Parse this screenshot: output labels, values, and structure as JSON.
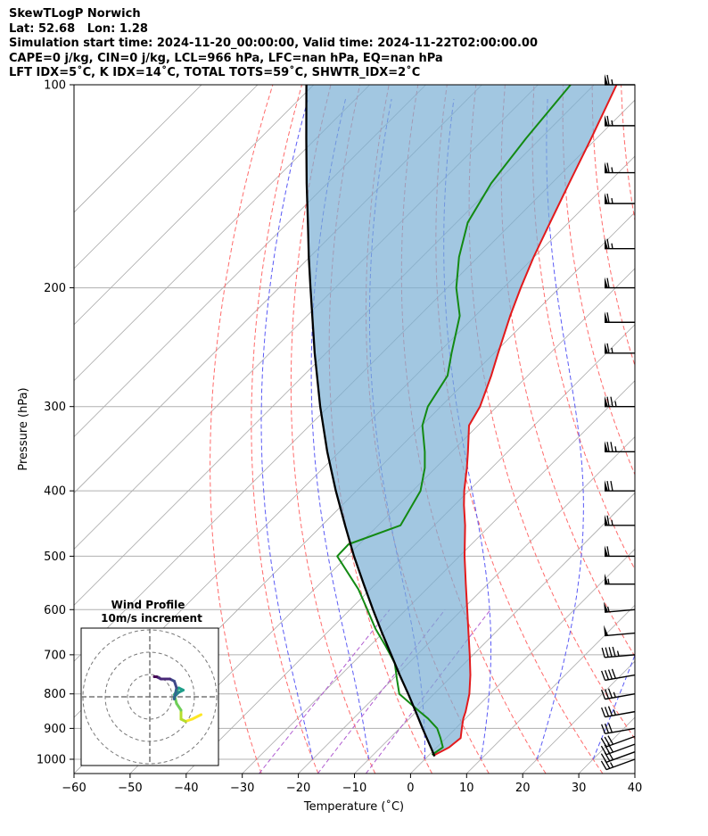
{
  "header": {
    "line1": "SkewTLogP Norwich",
    "line2": "Lat: 52.68   Lon: 1.28",
    "line3": "Simulation start time: 2024-11-20_00:00:00, Valid time: 2024-11-22T02:00:00.00",
    "line4": "CAPE=0 j/kg, CIN=0 j/kg, LCL=966 hPa, LFC=nan hPa, EQ=nan hPa",
    "line5": "LFT IDX=5˚C, K IDX=14˚C, TOTAL TOTS=59˚C, SHWTR_IDX=2˚C"
  },
  "chart_data": {
    "type": "line",
    "subtype": "skew-t log-p",
    "xlabel": "Temperature (˚C)",
    "ylabel": "Pressure (hPa)",
    "xlim": [
      -60,
      40
    ],
    "ylim": [
      1050,
      100
    ],
    "yscale": "log",
    "xticks": [
      -60,
      -50,
      -40,
      -30,
      -20,
      -10,
      0,
      10,
      20,
      30,
      40
    ],
    "yticks": [
      100,
      200,
      300,
      400,
      500,
      600,
      700,
      800,
      900,
      1000
    ],
    "grid": true,
    "colors": {
      "temperature": "#e31a1c",
      "dewpoint": "#138a13",
      "parcel": "#000000",
      "shading": "#7bafd4",
      "isotherm": "#aaaaaa",
      "dry_adiabat": "#ff6b6b",
      "moist_adiabat": "#5a5af5",
      "mixing_ratio": "#b05cd0"
    },
    "series": [
      {
        "key": "temperature",
        "pressure": [
          985,
          960,
          930,
          900,
          870,
          850,
          800,
          750,
          700,
          650,
          600,
          550,
          500,
          450,
          420,
          400,
          370,
          350,
          320,
          300,
          270,
          250,
          220,
          200,
          180,
          160,
          140,
          120,
          100
        ],
        "values": [
          1.0,
          2.2,
          2.6,
          1.1,
          -0.4,
          -1.2,
          -3.7,
          -6.9,
          -10.6,
          -14.7,
          -19.1,
          -23.9,
          -29.1,
          -34.5,
          -38.3,
          -40.8,
          -44.4,
          -47.1,
          -51.6,
          -53.0,
          -56.5,
          -59.3,
          -63.8,
          -66.9,
          -70.1,
          -73.3,
          -76.9,
          -81.0,
          -86.0
        ]
      },
      {
        "key": "dewpoint",
        "pressure": [
          985,
          960,
          930,
          900,
          870,
          850,
          800,
          760,
          720,
          680,
          640,
          600,
          560,
          500,
          480,
          450,
          400,
          370,
          350,
          320,
          300,
          270,
          250,
          220,
          200,
          180,
          160,
          140,
          120,
          100
        ],
        "values": [
          0.5,
          1.1,
          -1.0,
          -3.3,
          -6.7,
          -9.4,
          -16.2,
          -19.3,
          -22.5,
          -27.1,
          -32.1,
          -36.9,
          -42.1,
          -51.8,
          -51.9,
          -46.0,
          -48.6,
          -51.9,
          -54.8,
          -59.9,
          -62.3,
          -64.3,
          -67.6,
          -72.8,
          -78.4,
          -83.4,
          -88.0,
          -90.8,
          -92.6,
          -94.2
        ]
      },
      {
        "key": "parcel",
        "pressure": [
          990,
          966,
          900,
          850,
          800,
          750,
          700,
          650,
          600,
          550,
          500,
          450,
          400,
          350,
          300,
          250,
          200,
          180,
          160,
          140,
          120,
          100
        ],
        "values": [
          1.2,
          -0.6,
          -5.9,
          -10.1,
          -14.6,
          -19.5,
          -24.6,
          -30.1,
          -35.9,
          -42.1,
          -48.8,
          -55.9,
          -63.7,
          -72.2,
          -81.5,
          -92.0,
          -104.4,
          -110.2,
          -116.5,
          -123.7,
          -131.8,
          -141.3
        ]
      }
    ],
    "wind_barbs": {
      "pressure": [
        1000,
        975,
        950,
        925,
        900,
        850,
        800,
        750,
        700,
        650,
        600,
        550,
        500,
        450,
        400,
        350,
        300,
        250,
        225,
        200,
        175,
        150,
        135,
        115,
        100
      ],
      "speed_kt": [
        25,
        30,
        30,
        30,
        30,
        35,
        35,
        40,
        45,
        50,
        55,
        55,
        60,
        65,
        70,
        75,
        75,
        65,
        60,
        60,
        65,
        65,
        65,
        65,
        65
      ],
      "direction_deg": [
        250,
        250,
        250,
        250,
        260,
        260,
        260,
        260,
        265,
        265,
        265,
        270,
        270,
        270,
        270,
        270,
        270,
        270,
        270,
        270,
        270,
        270,
        270,
        270,
        270
      ]
    },
    "hodograph": {
      "title": "Wind Profile",
      "subtitle": "10m/s increment",
      "ring_step_ms": 10,
      "rings": 3,
      "colormap": "viridis",
      "u_ms": [
        23,
        19,
        16,
        14,
        14,
        12,
        11,
        13,
        15,
        13,
        11,
        11,
        12,
        11,
        9,
        5,
        3,
        2
      ],
      "v_ms": [
        -8,
        -10,
        -11,
        -10,
        -6,
        -3,
        1,
        4,
        3,
        2,
        0,
        -1,
        4,
        7,
        8,
        8,
        9,
        9
      ]
    }
  }
}
